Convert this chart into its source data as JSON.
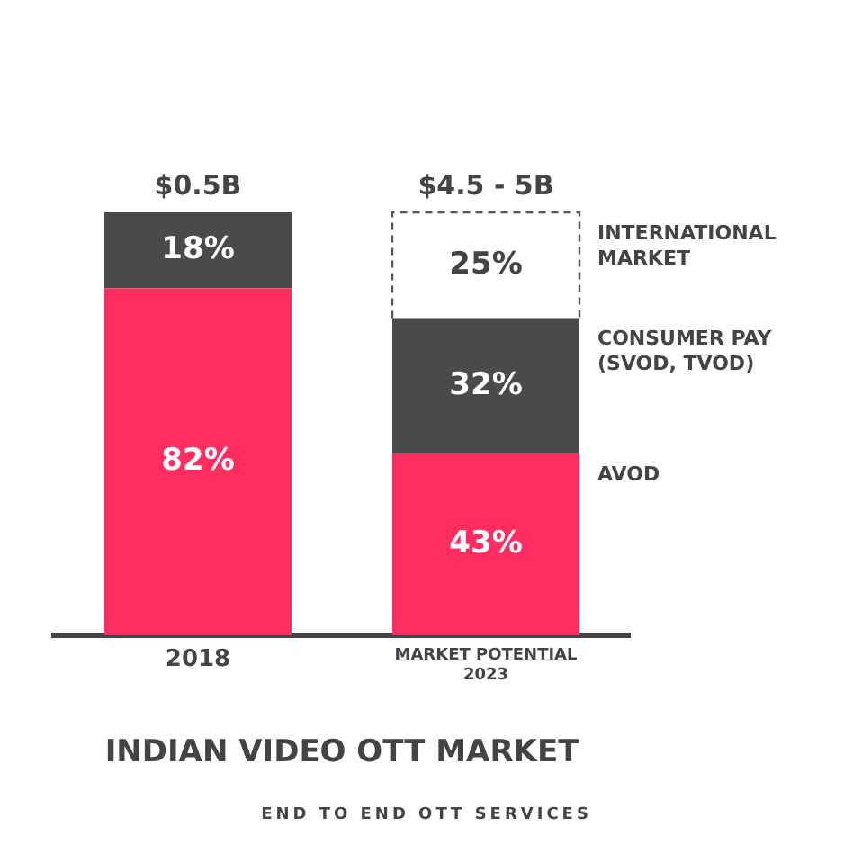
{
  "chart_data": {
    "type": "bar",
    "title": "INDIAN VIDEO OTT MARKET",
    "stacked": true,
    "legend": false,
    "grid": false,
    "categories": [
      "2018",
      "MARKET POTENTIAL 2023"
    ],
    "series": [
      {
        "name": "AVOD",
        "color": "#ff2d5f",
        "values": [
          82,
          43
        ],
        "value_labels": [
          "82%",
          "43%"
        ]
      },
      {
        "name": "CONSUMER PAY (SVOD, TVOD)",
        "color": "#4a4a4a",
        "values": [
          18,
          32
        ],
        "value_labels": [
          "18%",
          "32%"
        ]
      },
      {
        "name": "INTERNATIONAL MARKET",
        "color": "#ffffff",
        "line_style": "dashed",
        "values": [
          null,
          25
        ],
        "value_labels": [
          null,
          "25%"
        ]
      }
    ],
    "tick_labels": "x",
    "annotations": [
      {
        "text": "$0.5B",
        "x": "2018",
        "y": 100
      },
      {
        "text": "$4.5 - 5B",
        "x": "MARKET POTENTIAL 2023",
        "y": 100
      },
      "END TO END OTT SERVICES"
    ]
  }
}
